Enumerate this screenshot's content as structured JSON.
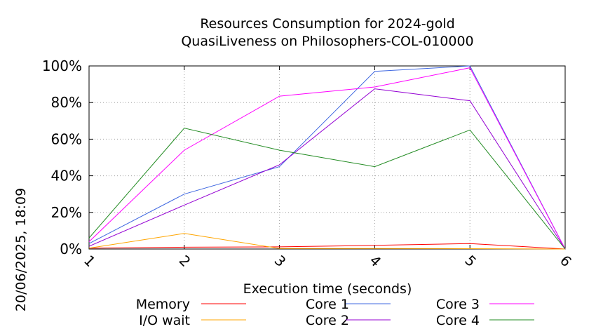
{
  "chart_data": {
    "type": "line",
    "title": "Resources Consumption for 2024-gold",
    "subtitle": "QuasiLiveness on Philosophers-COL-010000",
    "xlabel": "Execution time (seconds)",
    "side_label": "20/06/2025, 18:09",
    "x": [
      1,
      2,
      3,
      4,
      5,
      6
    ],
    "xlim": [
      1,
      6
    ],
    "ylim": [
      0,
      100
    ],
    "yticks": [
      "0%",
      "20%",
      "40%",
      "60%",
      "80%",
      "100%"
    ],
    "xticks": [
      "1",
      "2",
      "3",
      "4",
      "5",
      "6"
    ],
    "grid": true,
    "legend_position": "bottom",
    "series": [
      {
        "name": "Memory",
        "color": "#ff0000",
        "values": [
          0.5,
          1,
          1.2,
          2,
          3,
          0
        ]
      },
      {
        "name": "I/O wait",
        "color": "#ffa500",
        "values": [
          0.5,
          8.5,
          0.3,
          0.3,
          0.2,
          0
        ]
      },
      {
        "name": "Core 1",
        "color": "#4169e1",
        "values": [
          3,
          30,
          45,
          97,
          100,
          0
        ]
      },
      {
        "name": "Core 2",
        "color": "#9400d3",
        "values": [
          1.5,
          24,
          46,
          87.5,
          81,
          0
        ]
      },
      {
        "name": "Core 3",
        "color": "#ff00ff",
        "values": [
          4,
          54,
          83.5,
          88.5,
          99,
          0
        ]
      },
      {
        "name": "Core 4",
        "color": "#228b22",
        "values": [
          6,
          66,
          54,
          45,
          65,
          0
        ]
      }
    ]
  }
}
